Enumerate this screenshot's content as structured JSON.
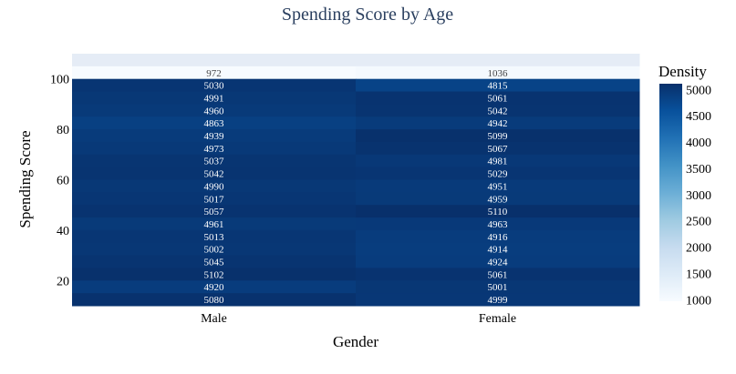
{
  "chart_data": {
    "type": "heatmap",
    "title": "Spending Score by Age",
    "xlabel": "Gender",
    "ylabel": "Spending Score",
    "categories": [
      "Male",
      "Female"
    ],
    "y_ticks": [
      20,
      40,
      60,
      80,
      100
    ],
    "ylim": [
      10,
      110
    ],
    "rows": [
      {
        "y": 107.5,
        "values": [
          null,
          null
        ]
      },
      {
        "y": 102.5,
        "values": [
          972,
          1036
        ]
      },
      {
        "y": 97.5,
        "values": [
          5030,
          4815
        ]
      },
      {
        "y": 92.5,
        "values": [
          4991,
          5061
        ]
      },
      {
        "y": 87.5,
        "values": [
          4960,
          5042
        ]
      },
      {
        "y": 82.5,
        "values": [
          4863,
          4942
        ]
      },
      {
        "y": 77.5,
        "values": [
          4939,
          5099
        ]
      },
      {
        "y": 72.5,
        "values": [
          4973,
          5067
        ]
      },
      {
        "y": 67.5,
        "values": [
          5037,
          4981
        ]
      },
      {
        "y": 62.5,
        "values": [
          5042,
          5029
        ]
      },
      {
        "y": 57.5,
        "values": [
          4990,
          4951
        ]
      },
      {
        "y": 52.5,
        "values": [
          5017,
          4959
        ]
      },
      {
        "y": 47.5,
        "values": [
          5057,
          5110
        ]
      },
      {
        "y": 42.5,
        "values": [
          4961,
          4963
        ]
      },
      {
        "y": 37.5,
        "values": [
          5013,
          4916
        ]
      },
      {
        "y": 32.5,
        "values": [
          5002,
          4914
        ]
      },
      {
        "y": 27.5,
        "values": [
          5045,
          4924
        ]
      },
      {
        "y": 22.5,
        "values": [
          5102,
          5061
        ]
      },
      {
        "y": 17.5,
        "values": [
          4920,
          5001
        ]
      },
      {
        "y": 12.5,
        "values": [
          5080,
          4999
        ]
      }
    ],
    "colorbar": {
      "title": "Density",
      "ticks": [
        1000,
        1500,
        2000,
        2500,
        3000,
        3500,
        4000,
        4500,
        5000
      ],
      "range": [
        972,
        5110
      ],
      "colorscale": [
        "#f7fbff",
        "#deebf7",
        "#c6dbef",
        "#9ecae1",
        "#6baed6",
        "#4292c6",
        "#2171b5",
        "#08519c",
        "#08306b"
      ],
      "empty_color": "#e5ecf6"
    }
  }
}
